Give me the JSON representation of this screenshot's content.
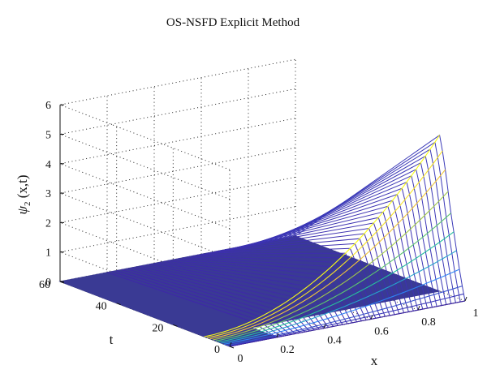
{
  "chart_data": {
    "type": "surface",
    "title": "OS-NSFD Explicit Method",
    "xlabel": "x",
    "ylabel": "t",
    "zlabel_base": "ψ",
    "zlabel_sub": "2",
    "zlabel_args": " (x,t)",
    "x_ticks": [
      "0",
      "0.2",
      "0.4",
      "0.6",
      "0.8",
      "1"
    ],
    "t_ticks": [
      "0",
      "20",
      "40",
      "60"
    ],
    "z_ticks": [
      "0",
      "1",
      "2",
      "3",
      "4",
      "5",
      "6"
    ],
    "xlim": [
      0,
      1
    ],
    "tlim": [
      0,
      60
    ],
    "zlim": [
      0,
      6
    ],
    "grid": true,
    "colormap": [
      "#3e26a8",
      "#2e87f7",
      "#1fbea5",
      "#7fcb53",
      "#f4c53a",
      "#f9fb15"
    ],
    "flat_color": "#3a3a94",
    "z_at_x1_by_t": [
      [
        0,
        0
      ],
      [
        0.5,
        0.22
      ],
      [
        1,
        0.47
      ],
      [
        2,
        1.0
      ],
      [
        3,
        1.6
      ],
      [
        4,
        2.2
      ],
      [
        5,
        2.8
      ],
      [
        6,
        3.5
      ],
      [
        7,
        4.2
      ],
      [
        8,
        4.8
      ],
      [
        9,
        5.3
      ]
    ],
    "z_shape": "x^2 growth along x, linear growth in t up to t=9, zero beyond"
  }
}
